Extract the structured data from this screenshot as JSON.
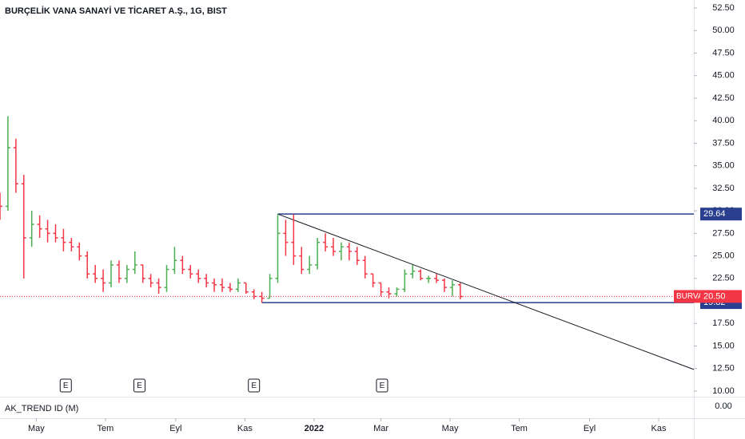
{
  "chart_data": {
    "type": "ohlc",
    "title": "BURÇELİK VANA SANAYİ VE TİCARET A.Ş., 1G, BIST",
    "x": [
      0,
      7,
      14,
      21,
      28,
      35,
      42,
      49,
      56,
      63,
      70,
      77,
      84,
      91,
      98,
      105,
      112,
      119,
      126,
      133,
      140,
      147,
      154,
      161,
      168,
      175,
      182,
      189,
      196,
      203,
      210,
      217,
      224,
      231,
      238,
      245,
      252,
      259,
      266,
      273,
      280,
      287,
      294,
      301,
      308,
      315,
      322,
      329,
      336,
      343,
      350,
      357,
      364,
      371,
      378,
      385,
      392,
      399,
      406
    ],
    "open": [
      31,
      30.5,
      37,
      33,
      27,
      28.5,
      28,
      27.5,
      27,
      26.5,
      26,
      25,
      23,
      22.5,
      22,
      24,
      22.5,
      23.5,
      24,
      22.5,
      22,
      21.5,
      23.5,
      24.5,
      23.5,
      23,
      22.5,
      22,
      21.8,
      21.5,
      21.3,
      22,
      21,
      20.5,
      20.3,
      22.5,
      27.5,
      26.5,
      25,
      23.5,
      24,
      26.5,
      26,
      25.5,
      26,
      25.5,
      24.5,
      23,
      22,
      21,
      20.8,
      21.3,
      23,
      23.3,
      22.5,
      22.5,
      22.3,
      21.5,
      21.8
    ],
    "high": [
      32,
      40.5,
      38,
      34,
      30,
      29.5,
      29,
      28.5,
      28,
      27,
      26.5,
      25.5,
      24,
      23.5,
      24.5,
      24.5,
      24,
      25.5,
      24,
      23,
      22.5,
      24,
      26,
      25,
      24,
      23.5,
      23,
      22.5,
      22.5,
      22,
      22.5,
      22,
      21.3,
      21,
      23,
      29.64,
      29,
      29.6,
      26,
      25,
      27,
      27.5,
      27,
      26.5,
      26.5,
      26,
      25,
      23,
      22,
      21.5,
      21.5,
      23.5,
      24,
      23.5,
      22.8,
      23,
      22.5,
      22.3,
      22
    ],
    "low": [
      29,
      30,
      32,
      22.5,
      26,
      27,
      26.5,
      26.5,
      25.5,
      25.5,
      24.5,
      22.5,
      22,
      21,
      21.5,
      22,
      22,
      23,
      22,
      21.5,
      20.8,
      21,
      23,
      23,
      22.5,
      22,
      21.5,
      21,
      21,
      21,
      21,
      20.8,
      20.2,
      19.82,
      20.3,
      22,
      25,
      24,
      23,
      23,
      23.5,
      25.5,
      25,
      24.5,
      24.5,
      24,
      22.5,
      21.5,
      20.5,
      20.3,
      20.5,
      21,
      22.5,
      22.3,
      22,
      22,
      21,
      20.5,
      20.2
    ],
    "close": [
      30.5,
      37,
      33,
      27,
      28.5,
      28,
      27.5,
      27,
      26.5,
      26,
      25,
      23,
      22.5,
      22,
      24,
      22.5,
      23.5,
      24,
      22.5,
      22,
      21.5,
      23.5,
      24.5,
      23.5,
      23,
      22.5,
      22,
      21.8,
      21.5,
      21.3,
      22,
      21,
      20.5,
      20.3,
      22.5,
      27.5,
      26.5,
      25,
      23.5,
      24,
      26.5,
      26,
      25.5,
      26,
      25.5,
      24.5,
      23,
      22,
      21,
      20.8,
      21.3,
      23,
      23.3,
      22.5,
      22.5,
      22.3,
      21.5,
      21.8,
      20.5
    ],
    "up_color": "#4caf50",
    "down_color": "#f23645",
    "xlim": [
      0,
      612
    ],
    "xticks": [
      {
        "value": 32,
        "label": "May"
      },
      {
        "value": 93,
        "label": "Tem"
      },
      {
        "value": 155,
        "label": "Eyl"
      },
      {
        "value": 216,
        "label": "Kas"
      },
      {
        "value": 277,
        "label": "2022"
      },
      {
        "value": 336,
        "label": "Mar"
      },
      {
        "value": 397,
        "label": "May"
      },
      {
        "value": 458,
        "label": "Tem"
      },
      {
        "value": 520,
        "label": "Eyl"
      },
      {
        "value": 581,
        "label": "Kas"
      }
    ],
    "ylim": [
      10,
      52.5
    ],
    "yticks": [
      {
        "value": 10,
        "label": "10.00"
      },
      {
        "value": 12.5,
        "label": "12.50"
      },
      {
        "value": 15,
        "label": "15.00"
      },
      {
        "value": 17.5,
        "label": "17.50"
      },
      {
        "value": 20,
        "label": "20.00"
      },
      {
        "value": 22.5,
        "label": "22.50"
      },
      {
        "value": 25,
        "label": "25.00"
      },
      {
        "value": 27.5,
        "label": "27.50"
      },
      {
        "value": 30,
        "label": "30.00"
      },
      {
        "value": 32.5,
        "label": "32.50"
      },
      {
        "value": 35,
        "label": "35.00"
      },
      {
        "value": 37.5,
        "label": "37.50"
      },
      {
        "value": 40,
        "label": "40.00"
      },
      {
        "value": 42.5,
        "label": "42.50"
      },
      {
        "value": 45,
        "label": "45.00"
      },
      {
        "value": 47.5,
        "label": "47.50"
      },
      {
        "value": 50,
        "label": "50.00"
      },
      {
        "value": 52.5,
        "label": "52.50"
      }
    ],
    "grid": false,
    "hlines": [
      {
        "start": 245,
        "value": 29.64,
        "color": "#2a3f8f"
      },
      {
        "start": 231,
        "value": 19.82,
        "color": "#2a3f8f"
      }
    ],
    "trendline": {
      "x": [
        245,
        612
      ],
      "y": [
        29.64,
        12.4
      ],
      "color": "#131722"
    },
    "last": {
      "symbol": "BURVA",
      "value": 20.5,
      "label": "20.50",
      "color": "#f23645"
    },
    "earnings": [
      {
        "x": 58,
        "label": "E"
      },
      {
        "x": 123,
        "label": "E"
      },
      {
        "x": 224,
        "label": "E"
      },
      {
        "x": 337,
        "label": "E"
      }
    ],
    "indicator": {
      "name": "AK_TREND ID (M)",
      "yticks": [
        {
          "value": 0,
          "label": "0.00"
        }
      ]
    }
  }
}
